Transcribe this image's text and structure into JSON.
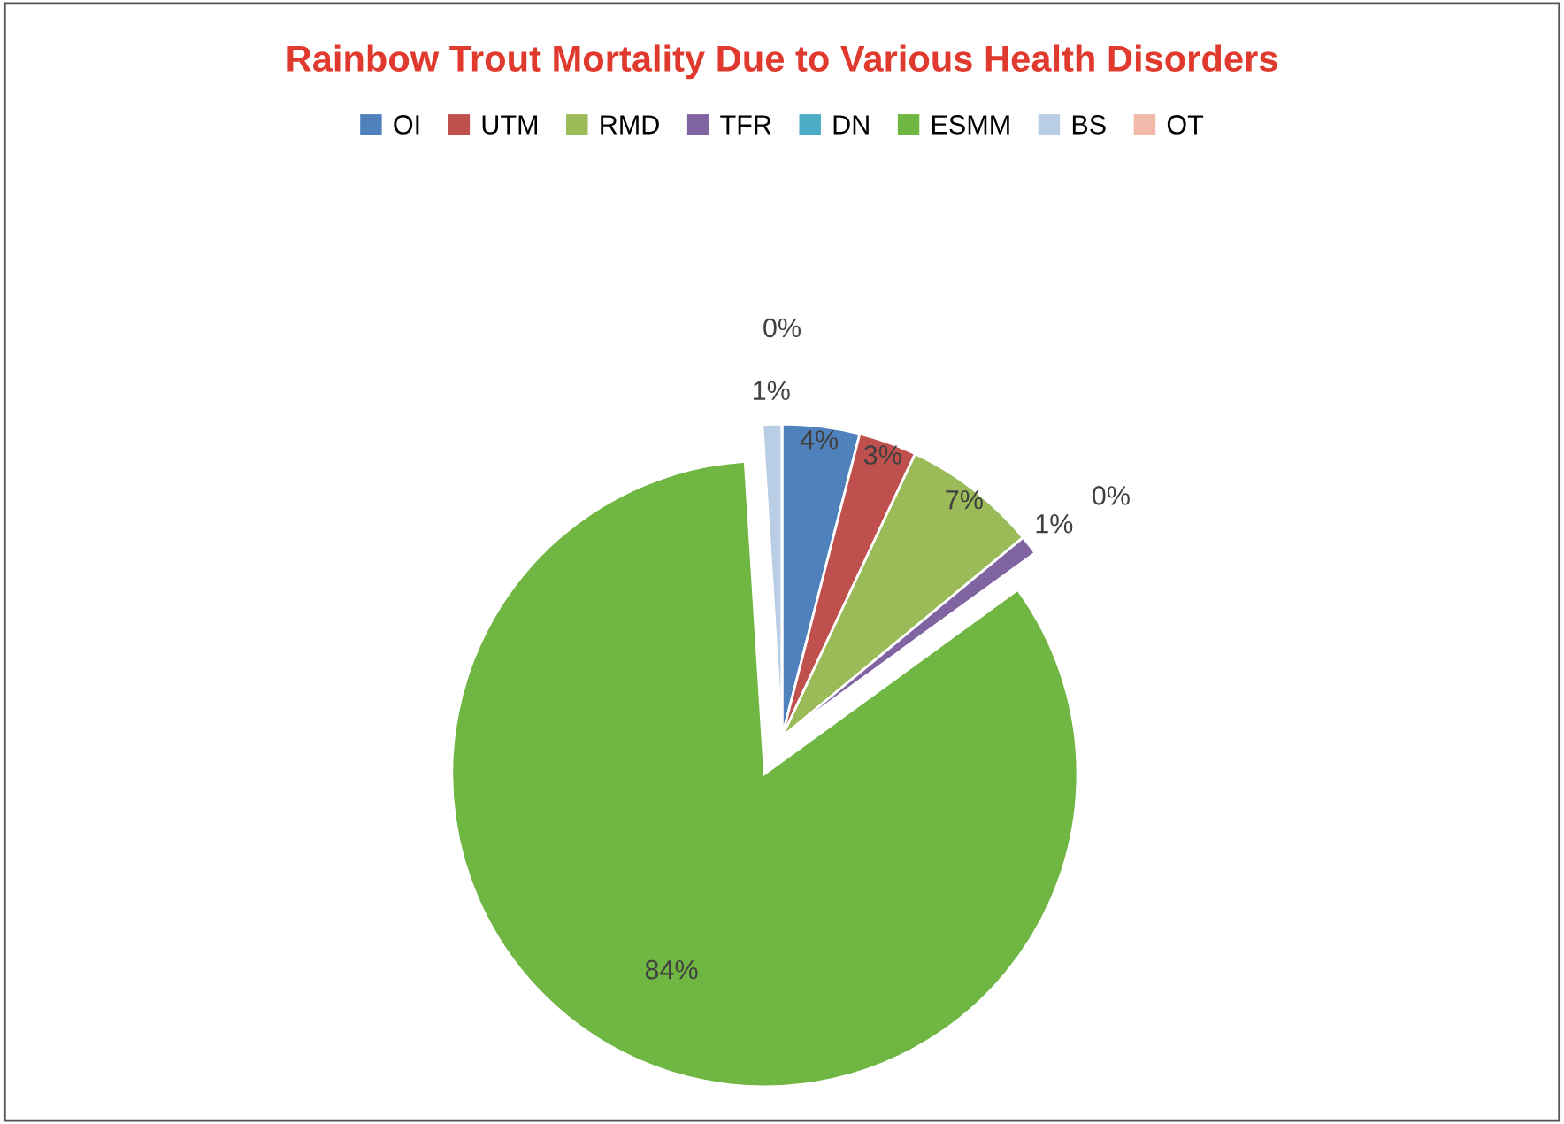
{
  "chart_data": {
    "type": "pie",
    "title": "Rainbow Trout Mortality Due to Various Health Disorders",
    "categories": [
      "OI",
      "UTM",
      "RMD",
      "TFR",
      "DN",
      "ESMM",
      "BS",
      "OT"
    ],
    "values": [
      4,
      3,
      7,
      1,
      0,
      84,
      1,
      0
    ],
    "value_labels": [
      "4%",
      "3%",
      "7%",
      "1%",
      "0%",
      "84%",
      "1%",
      "0%"
    ],
    "colors": [
      "#4f81bd",
      "#c0504d",
      "#9bbb59",
      "#8064a2",
      "#4bacc6",
      "#6fb643",
      "#b9cde5",
      "#f2b8a9"
    ],
    "legend": "top"
  }
}
